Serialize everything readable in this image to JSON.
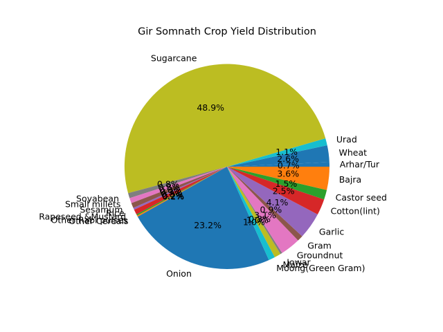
{
  "chart_data": {
    "type": "pie",
    "title": "Gir Somnath Crop Yield Distribution",
    "start_angle_deg": 0,
    "direction": "counterclockwise",
    "slices": [
      {
        "label": "Arhar/Tur",
        "value": 0.7,
        "pct_label": "0.7%",
        "color": "#1f77b4"
      },
      {
        "label": "Wheat",
        "value": 2.6,
        "pct_label": "2.6%",
        "color": "#1f77b4"
      },
      {
        "label": "Urad",
        "value": 1.1,
        "pct_label": "1.1%",
        "color": "#17becf"
      },
      {
        "label": "Sugarcane",
        "value": 48.9,
        "pct_label": "48.9%",
        "color": "#bcbd22"
      },
      {
        "label": "Soyabean",
        "value": 0.8,
        "pct_label": "0.8%",
        "color": "#7f7f7f"
      },
      {
        "label": "Small millets",
        "value": 0.8,
        "pct_label": "0.8%",
        "color": "#e377c2"
      },
      {
        "label": "Sesamum",
        "value": 0.8,
        "pct_label": "0.8%",
        "color": "#8c564b"
      },
      {
        "label": "Rice",
        "value": 0.3,
        "pct_label": "0.3%",
        "color": "#9467bd"
      },
      {
        "label": "Rapeseed &Mustard",
        "value": 0.8,
        "pct_label": "0.8%",
        "color": "#d62728"
      },
      {
        "label": "Other Rabi pulses",
        "value": 0.2,
        "pct_label": "0.2%",
        "color": "#2ca02c"
      },
      {
        "label": "Other Cereals",
        "value": 0.2,
        "pct_label": "0.2%",
        "color": "#ff7f0e"
      },
      {
        "label": "Onion",
        "value": 23.2,
        "pct_label": "23.2%",
        "color": "#1f77b4"
      },
      {
        "label": "Moong(Green Gram)",
        "value": 1.0,
        "pct_label": "1.0%",
        "color": "#17becf"
      },
      {
        "label": "Maize",
        "value": 1.0,
        "pct_label": "1.0%",
        "color": "#bcbd22"
      },
      {
        "label": "Jowar",
        "value": 0.3,
        "pct_label": "0.3%",
        "color": "#7f7f7f"
      },
      {
        "label": "Groundnut",
        "value": 3.1,
        "pct_label": "3.1%",
        "color": "#e377c2"
      },
      {
        "label": "Gram",
        "value": 0.9,
        "pct_label": "0.9%",
        "color": "#8c564b"
      },
      {
        "label": "Garlic",
        "value": 4.1,
        "pct_label": "4.1%",
        "color": "#9467bd"
      },
      {
        "label": "Cotton(lint)",
        "value": 2.5,
        "pct_label": "2.5%",
        "color": "#d62728"
      },
      {
        "label": "Castor seed",
        "value": 1.5,
        "pct_label": "1.5%",
        "color": "#2ca02c"
      },
      {
        "label": "Bajra",
        "value": 3.6,
        "pct_label": "3.6%",
        "color": "#ff7f0e"
      }
    ]
  }
}
